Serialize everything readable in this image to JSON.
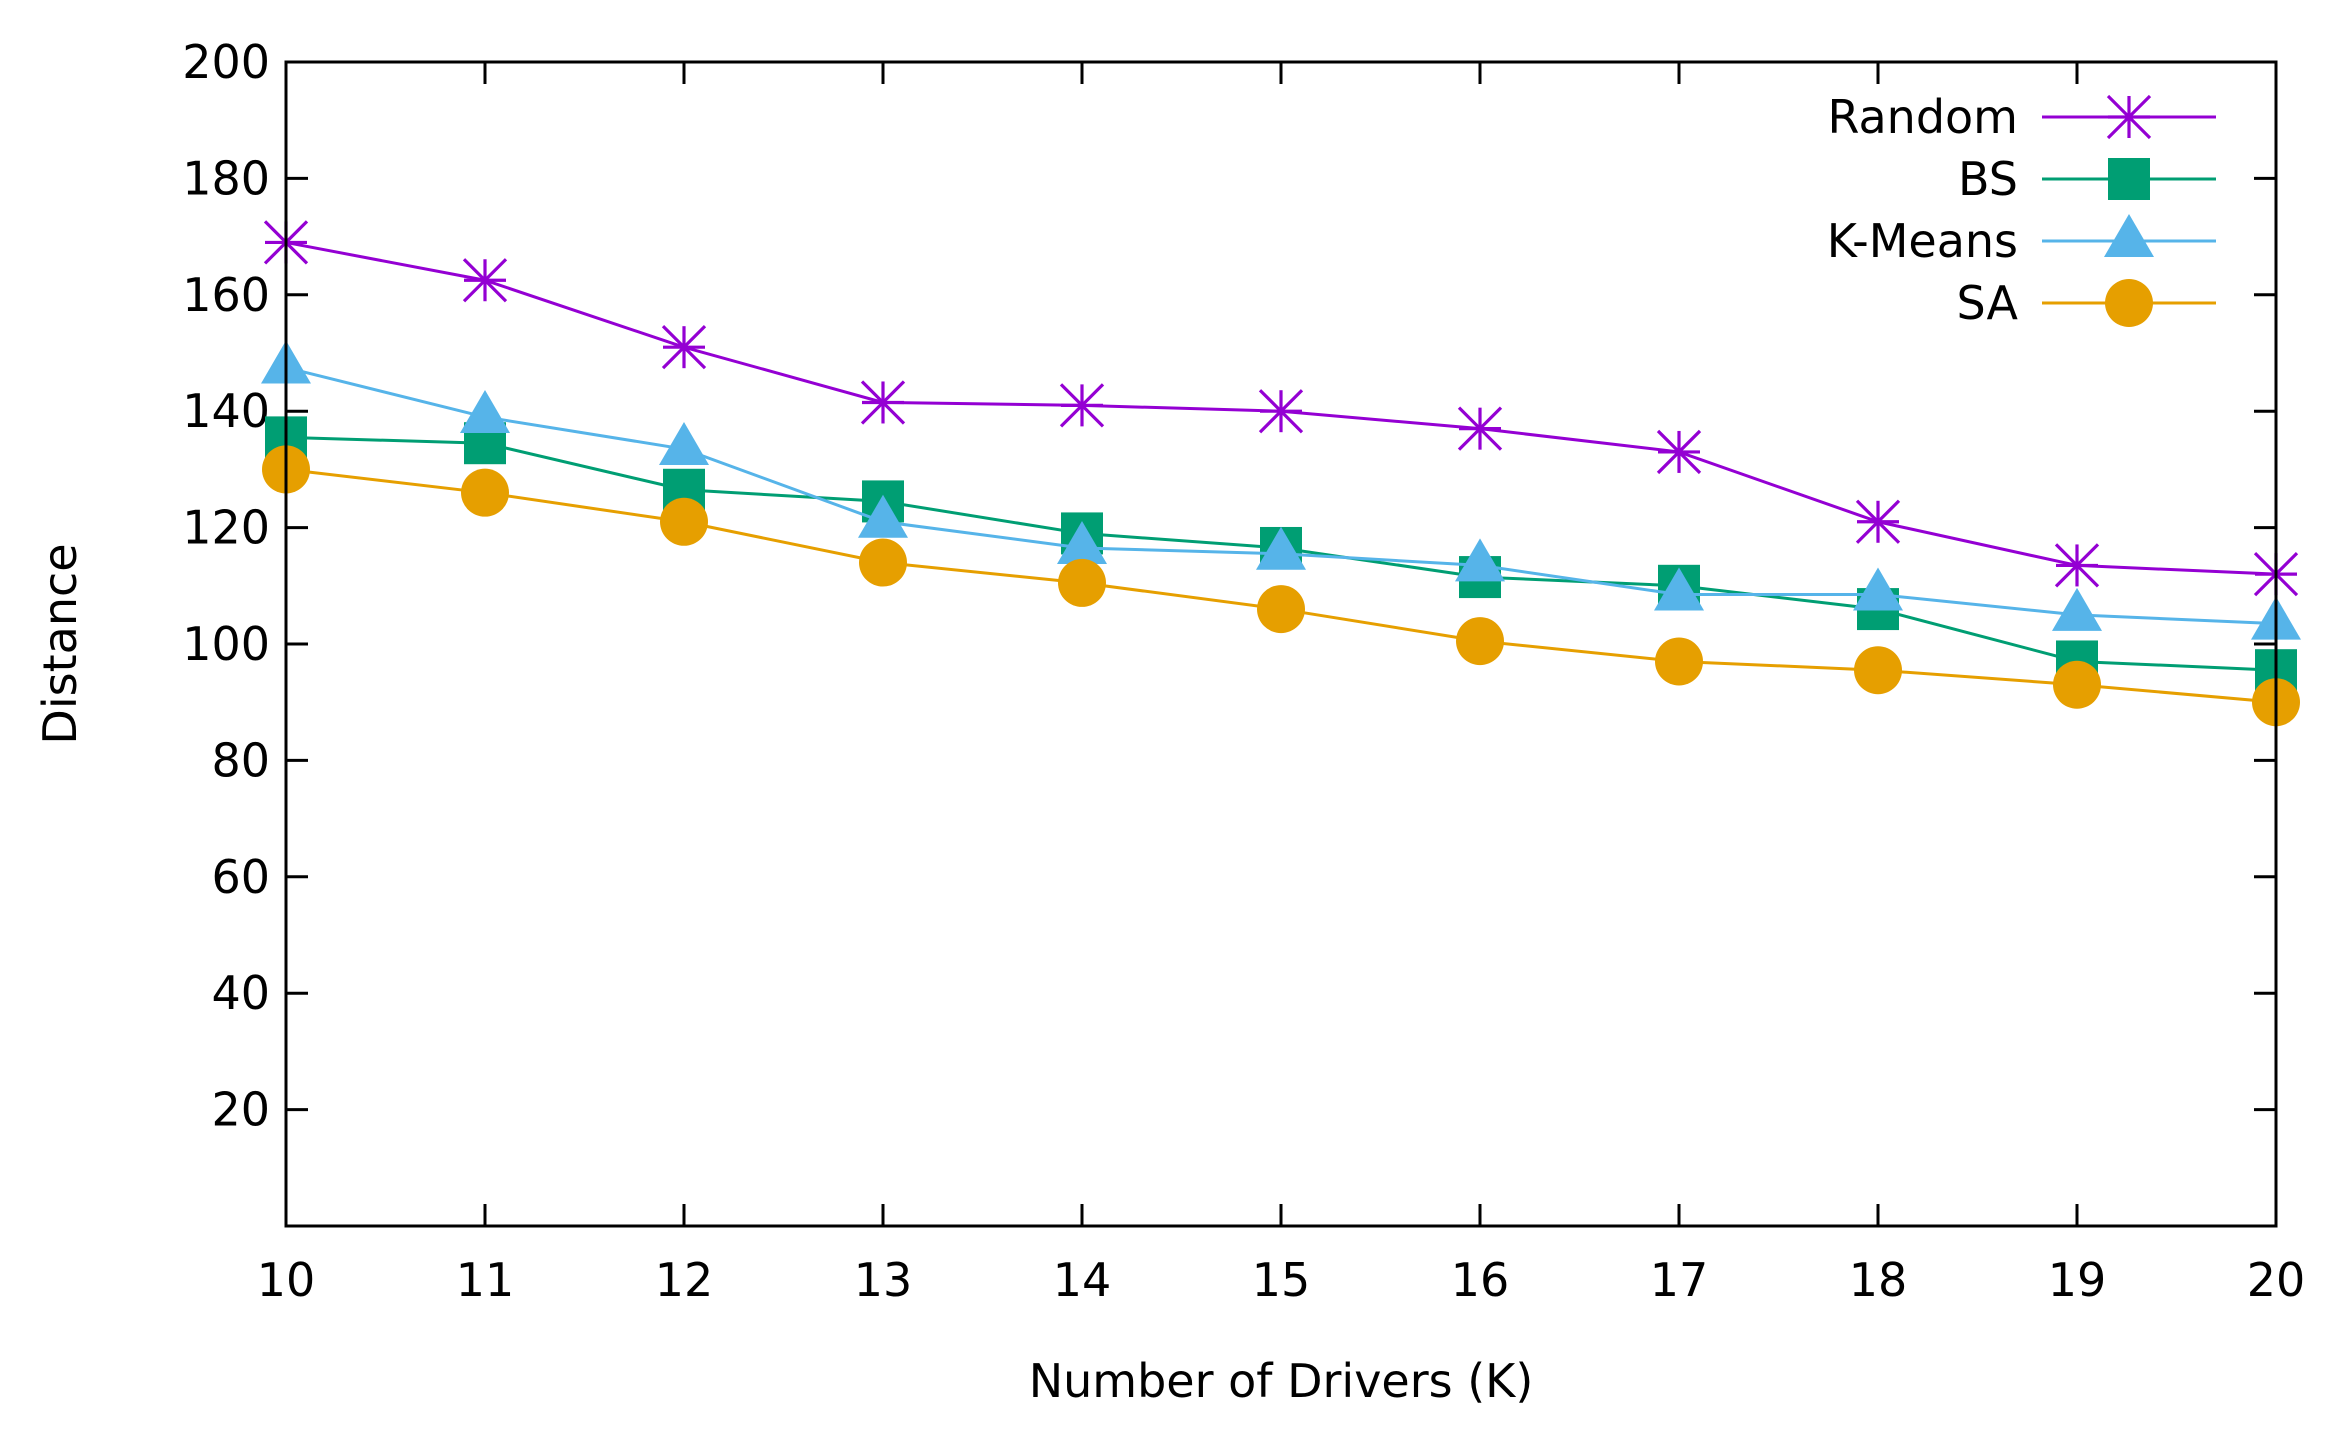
{
  "chart_data": {
    "type": "line",
    "title": "",
    "xlabel": "Number of Drivers (K)",
    "ylabel": "Distance",
    "x": [
      10,
      11,
      12,
      13,
      14,
      15,
      16,
      17,
      18,
      19,
      20
    ],
    "xlim": [
      10,
      20
    ],
    "ylim": [
      0,
      200
    ],
    "yticks": [
      20,
      40,
      60,
      80,
      100,
      120,
      140,
      160,
      180,
      200
    ],
    "grid": false,
    "legend_position": "top-right",
    "series": [
      {
        "name": "Random",
        "marker": "star",
        "color": "#9400d3",
        "values": [
          169,
          162.5,
          151,
          141.5,
          141,
          140,
          137,
          133,
          121,
          113.5,
          112
        ]
      },
      {
        "name": "BS",
        "marker": "square",
        "color": "#009e73",
        "values": [
          135.5,
          134.5,
          126.5,
          124.5,
          119,
          116.5,
          111.5,
          110,
          106,
          97,
          95.5
        ]
      },
      {
        "name": "K-Means",
        "marker": "triangle",
        "color": "#56b4e9",
        "values": [
          147.5,
          139,
          133.5,
          121,
          116.5,
          115.5,
          113.5,
          108.5,
          108.5,
          105,
          103.5
        ]
      },
      {
        "name": "SA",
        "marker": "circle",
        "color": "#e69f00",
        "values": [
          130,
          126,
          121,
          114,
          110.5,
          106,
          100.5,
          97,
          95.5,
          93,
          90
        ]
      }
    ]
  }
}
